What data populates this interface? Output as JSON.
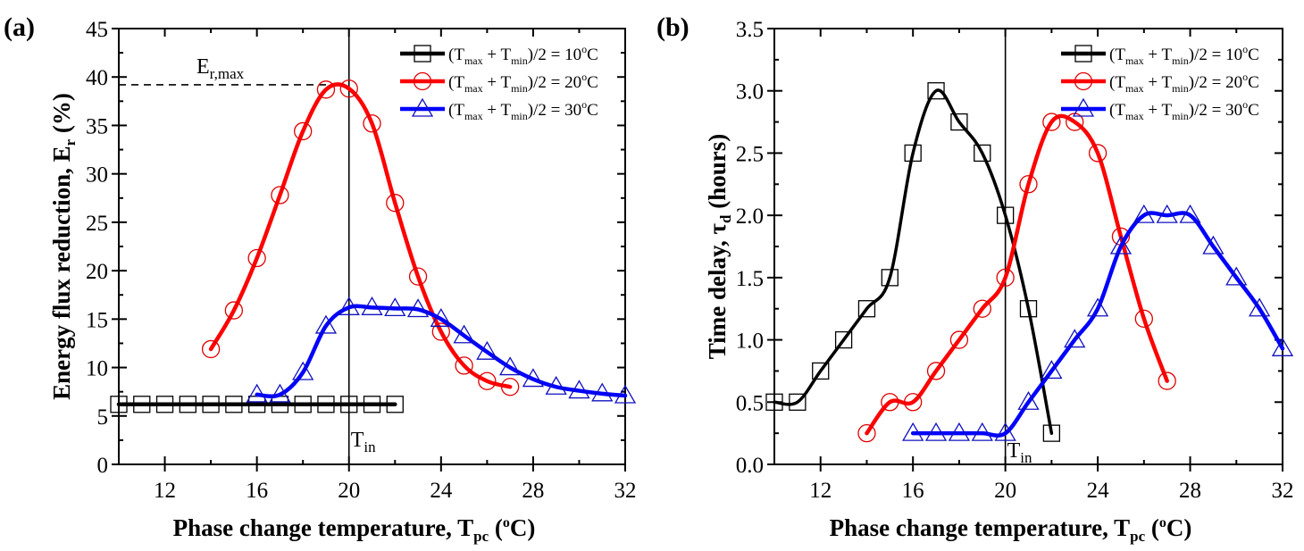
{
  "chart_data": [
    {
      "type": "line",
      "panel_label": "(a)",
      "title": "",
      "xlabel": {
        "main": "Phase change temperature, T",
        "sub": "pc",
        "unit_open": " (",
        "sup": "o",
        "unit_close": "C)"
      },
      "ylabel": {
        "main": "Energy flux reduction, E",
        "sub": "r",
        "unit": " (%)"
      },
      "xlim": [
        10,
        32
      ],
      "ylim": [
        0,
        45
      ],
      "xticks": [
        12,
        16,
        20,
        24,
        28,
        32
      ],
      "xtick_labels": [
        "12",
        "16",
        "20",
        "24",
        "28",
        "32"
      ],
      "yticks": [
        0,
        5,
        10,
        15,
        20,
        25,
        30,
        35,
        40,
        45
      ],
      "ytick_labels": [
        "0",
        "5",
        "10",
        "15",
        "20",
        "25",
        "30",
        "35",
        "40",
        "45"
      ],
      "grid": false,
      "legend_position": "top-right",
      "annotations": {
        "vline_x": 20,
        "vline_label": {
          "main": "T",
          "sub": "in"
        },
        "hline_y": 39.2,
        "hline_label": {
          "main": "E",
          "sub": "r,max"
        }
      },
      "series": [
        {
          "name": "(Tmax + Tmin)/2 = 10°C",
          "legend": {
            "open": "(T",
            "sub1": "max",
            "mid": " + T",
            "sub2": "min",
            "close": ")/2 = 10",
            "sup": "o",
            "end": "C"
          },
          "color": "#000000",
          "marker": "square",
          "x": [
            10,
            11,
            12,
            13,
            14,
            15,
            16,
            17,
            18,
            19,
            20,
            21,
            22
          ],
          "y": [
            6.2,
            6.2,
            6.2,
            6.2,
            6.2,
            6.2,
            6.2,
            6.2,
            6.2,
            6.2,
            6.2,
            6.2,
            6.2
          ]
        },
        {
          "name": "(Tmax + Tmin)/2 = 20°C",
          "legend": {
            "open": "(T",
            "sub1": "max",
            "mid": " + T",
            "sub2": "min",
            "close": ")/2 = 20",
            "sup": "o",
            "end": "C"
          },
          "color": "#ff0000",
          "marker": "circle",
          "x": [
            14,
            15,
            16,
            17,
            18,
            19,
            20,
            21,
            22,
            23,
            24,
            25,
            26,
            27
          ],
          "y": [
            11.9,
            15.9,
            21.3,
            27.8,
            34.4,
            38.7,
            38.8,
            35.2,
            27.0,
            19.4,
            13.7,
            10.2,
            8.6,
            8.0
          ]
        },
        {
          "name": "(Tmax + Tmin)/2 = 30°C",
          "legend": {
            "open": "(T",
            "sub1": "max",
            "mid": " + T",
            "sub2": "min",
            "close": ")/2 = 30",
            "sup": "o",
            "end": "C"
          },
          "color": "#0000ff",
          "marker": "triangle",
          "x": [
            16,
            17,
            18,
            19,
            20,
            21,
            22,
            23,
            24,
            25,
            26,
            27,
            28,
            29,
            30,
            31,
            32
          ],
          "y": [
            7.2,
            7.2,
            9.5,
            14.3,
            16.2,
            16.2,
            16.1,
            16.0,
            15.0,
            13.3,
            11.6,
            10.0,
            8.8,
            8.0,
            7.6,
            7.3,
            7.1
          ]
        }
      ]
    },
    {
      "type": "line",
      "panel_label": "(b)",
      "title": "",
      "xlabel": {
        "main": "Phase change temperature, T",
        "sub": "pc",
        "unit_open": " (",
        "sup": "o",
        "unit_close": "C)"
      },
      "ylabel": {
        "main": "Time delay, τ",
        "sub": "d",
        "unit": " (hours)"
      },
      "xlim": [
        10,
        32
      ],
      "ylim": [
        0,
        3.5
      ],
      "xticks": [
        12,
        16,
        20,
        24,
        28,
        32
      ],
      "xtick_labels": [
        "12",
        "16",
        "20",
        "24",
        "28",
        "32"
      ],
      "yticks": [
        0,
        0.5,
        1.0,
        1.5,
        2.0,
        2.5,
        3.0,
        3.5
      ],
      "ytick_labels": [
        "0.0",
        "0.5",
        "1.0",
        "1.5",
        "2.0",
        "2.5",
        "3.0",
        "3.5"
      ],
      "grid": false,
      "legend_position": "top-right",
      "annotations": {
        "vline_x": 20,
        "vline_label": {
          "main": "T",
          "sub": "in"
        }
      },
      "series": [
        {
          "name": "(Tmax + Tmin)/2 = 10°C",
          "legend": {
            "open": "(T",
            "sub1": "max",
            "mid": " + T",
            "sub2": "min",
            "close": ")/2 = 10",
            "sup": "o",
            "end": "C"
          },
          "color": "#000000",
          "marker": "square",
          "x": [
            10,
            11,
            12,
            13,
            14,
            15,
            16,
            17,
            18,
            19,
            20,
            21,
            22
          ],
          "y": [
            0.5,
            0.5,
            0.75,
            1.0,
            1.25,
            1.5,
            2.5,
            3.0,
            2.75,
            2.5,
            2.0,
            1.25,
            0.25
          ]
        },
        {
          "name": "(Tmax + Tmin)/2 = 20°C",
          "legend": {
            "open": "(T",
            "sub1": "max",
            "mid": " + T",
            "sub2": "min",
            "close": ")/2 = 20",
            "sup": "o",
            "end": "C"
          },
          "color": "#ff0000",
          "marker": "circle",
          "x": [
            14,
            15,
            16,
            17,
            18,
            19,
            20,
            21,
            22,
            23,
            24,
            25,
            26,
            27
          ],
          "y": [
            0.25,
            0.5,
            0.5,
            0.75,
            1.0,
            1.25,
            1.5,
            2.25,
            2.75,
            2.75,
            2.5,
            1.83,
            1.17,
            0.67
          ]
        },
        {
          "name": "(Tmax + Tmin)/2 = 30°C",
          "legend": {
            "open": "(T",
            "sub1": "max",
            "mid": " + T",
            "sub2": "min",
            "close": ")/2 = 30",
            "sup": "o",
            "end": "C"
          },
          "color": "#0000ff",
          "marker": "triangle",
          "x": [
            16,
            17,
            18,
            19,
            20,
            21,
            22,
            23,
            24,
            25,
            26,
            27,
            28,
            29,
            30,
            31,
            32
          ],
          "y": [
            0.25,
            0.25,
            0.25,
            0.25,
            0.25,
            0.5,
            0.75,
            1.0,
            1.25,
            1.75,
            2.0,
            2.0,
            2.0,
            1.75,
            1.5,
            1.25,
            0.93
          ]
        }
      ]
    }
  ]
}
